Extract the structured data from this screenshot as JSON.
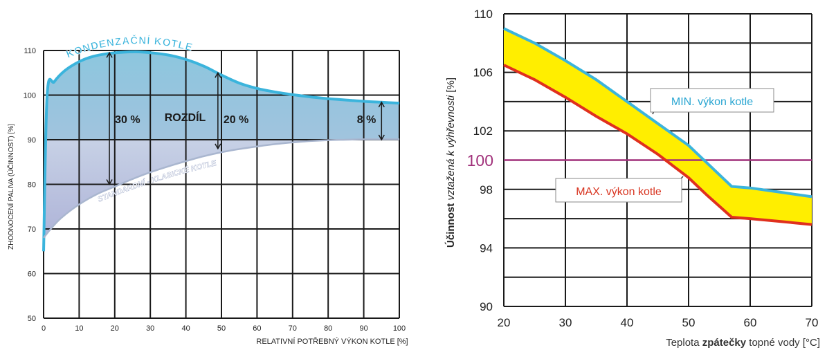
{
  "chart_data": [
    {
      "type": "area",
      "xlabel": "RELATIVNÍ POTŘEBNÝ VÝKON KOTLE  [%]",
      "ylabel": "ZHODNOCENÍ PALIVA (ÚČINNOST) [%]",
      "xlim": [
        0,
        100
      ],
      "ylim": [
        50,
        110
      ],
      "x_ticks": [
        "0",
        "10",
        "20",
        "30",
        "40",
        "50",
        "60",
        "70",
        "80",
        "90",
        "100"
      ],
      "y_ticks": [
        "50",
        "60",
        "70",
        "80",
        "90",
        "100",
        "110"
      ],
      "grid": true,
      "series": [
        {
          "name": "KONDENZAČNÍ KOTLE",
          "color": "#3bb4dc",
          "x": [
            0,
            1,
            3,
            6,
            10,
            14,
            18,
            22,
            26,
            30,
            35,
            40,
            45,
            50,
            55,
            60,
            65,
            70,
            75,
            80,
            85,
            90,
            95,
            100
          ],
          "y": [
            65,
            100,
            103,
            105.5,
            107.5,
            108.7,
            109.3,
            109.6,
            109.7,
            109.5,
            109,
            108,
            106.5,
            104.5,
            102.7,
            101.5,
            100.7,
            100.1,
            99.6,
            99.2,
            98.9,
            98.6,
            98.4,
            98.2
          ]
        },
        {
          "name": "STANDARDNÍ - KLASICKÉ KOTLE",
          "color": "#a9b6cf",
          "x": [
            0,
            2,
            5,
            10,
            15,
            20,
            25,
            30,
            35,
            40,
            45,
            50,
            55,
            60,
            65,
            70,
            75,
            80,
            85,
            90,
            95,
            100
          ],
          "y": [
            68,
            70,
            72.5,
            75.5,
            77.8,
            79.5,
            81.2,
            82.7,
            84,
            85.2,
            86.3,
            87.2,
            87.9,
            88.5,
            89,
            89.4,
            89.7,
            89.9,
            90,
            90.1,
            90.1,
            90.1
          ]
        }
      ],
      "annotations": [
        {
          "label": "30 %",
          "x": 18.5,
          "y_from": 80,
          "y_to": 109.5
        },
        {
          "label": "ROZDÍL",
          "x": 34,
          "y": 95
        },
        {
          "label": "20 %",
          "x": 49,
          "y_from": 88,
          "y_to": 105
        },
        {
          "label": "8 %",
          "x": 95,
          "y_from": 90,
          "y_to": 98.4
        }
      ]
    },
    {
      "type": "line",
      "xlabel_parts": [
        "Teplota ",
        "zpátečky",
        " topné vody [°C]"
      ],
      "ylabel_parts": [
        "Účinnost ",
        "vztažená k výhřevnosti",
        " [%]"
      ],
      "xlim": [
        20,
        70
      ],
      "ylim": [
        90,
        110
      ],
      "x_ticks": [
        "20",
        "30",
        "40",
        "50",
        "60",
        "70"
      ],
      "y_ticks": [
        "90",
        "94",
        "98",
        "102",
        "106",
        "110"
      ],
      "reference_line": {
        "label": "100",
        "y": 100,
        "color": "#a0307a"
      },
      "grid": true,
      "fill_between": "#ffee00",
      "series": [
        {
          "name": "MIN. výkon kotle",
          "color": "#3bb4dc",
          "x": [
            20,
            25,
            30,
            35,
            40,
            45,
            50,
            53,
            57,
            60,
            65,
            70
          ],
          "y": [
            109,
            108,
            106.8,
            105.5,
            104,
            102.5,
            101,
            99.8,
            98.2,
            98.1,
            97.8,
            97.5
          ]
        },
        {
          "name": "MAX. výkon kotle",
          "color": "#e0301e",
          "x": [
            20,
            25,
            30,
            35,
            40,
            45,
            50,
            53,
            57,
            60,
            65,
            70
          ],
          "y": [
            106.5,
            105.5,
            104.3,
            103,
            101.8,
            100.4,
            98.8,
            97.6,
            96.1,
            96,
            95.8,
            95.6
          ]
        }
      ]
    }
  ]
}
